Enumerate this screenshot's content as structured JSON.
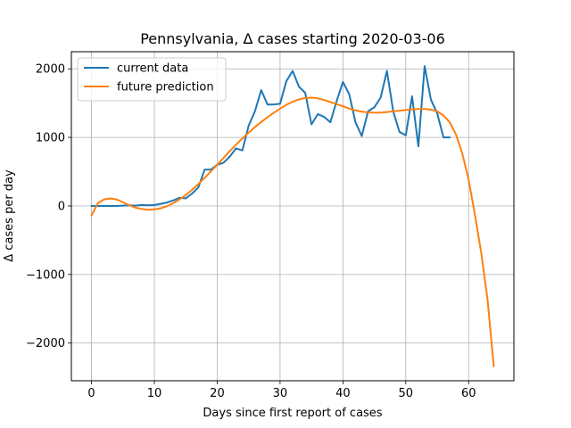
{
  "chart_data": {
    "type": "line",
    "title": "Pennsylvania, Δ cases starting 2020-03-06",
    "xlabel": "Days since first report of cases",
    "ylabel": "Δ cases per day",
    "xlim": [
      -3.2,
      67.2
    ],
    "ylim": [
      -2550,
      2250
    ],
    "x_ticks": [
      0,
      10,
      20,
      30,
      40,
      50,
      60
    ],
    "y_ticks": [
      -2000,
      -1000,
      0,
      1000,
      2000
    ],
    "y_tick_labels": [
      "−2000",
      "−1000",
      "0",
      "1000",
      "2000"
    ],
    "grid": true,
    "legend_position": "top-left",
    "series": [
      {
        "name": "current data",
        "color": "#1f77b4",
        "x": [
          0,
          1,
          2,
          3,
          4,
          5,
          6,
          7,
          8,
          9,
          10,
          11,
          12,
          13,
          14,
          15,
          16,
          17,
          18,
          19,
          20,
          21,
          22,
          23,
          24,
          25,
          26,
          27,
          28,
          29,
          30,
          31,
          32,
          33,
          34,
          35,
          36,
          37,
          38,
          39,
          40,
          41,
          42,
          43,
          44,
          45,
          46,
          47,
          48,
          49,
          50,
          51,
          52,
          53,
          54,
          55,
          56,
          57
        ],
        "y": [
          0,
          0,
          0,
          0,
          0,
          5,
          10,
          5,
          15,
          10,
          15,
          30,
          50,
          80,
          120,
          110,
          180,
          270,
          530,
          530,
          600,
          630,
          720,
          840,
          810,
          1170,
          1380,
          1690,
          1480,
          1480,
          1490,
          1820,
          1970,
          1740,
          1650,
          1190,
          1340,
          1300,
          1220,
          1530,
          1810,
          1630,
          1220,
          1020,
          1380,
          1440,
          1580,
          1970,
          1380,
          1080,
          1030,
          1600,
          870,
          2040,
          1550,
          1350,
          1000,
          1000
        ]
      },
      {
        "name": "future prediction",
        "color": "#ff7f0e",
        "x": [
          0,
          1,
          2,
          3,
          4,
          5,
          6,
          7,
          8,
          9,
          10,
          11,
          12,
          13,
          14,
          15,
          16,
          17,
          18,
          19,
          20,
          21,
          22,
          23,
          24,
          25,
          26,
          27,
          28,
          29,
          30,
          31,
          32,
          33,
          34,
          35,
          36,
          37,
          38,
          39,
          40,
          41,
          42,
          43,
          44,
          45,
          46,
          47,
          48,
          49,
          50,
          51,
          52,
          53,
          54,
          55,
          56,
          57,
          58,
          59,
          60,
          61,
          62,
          63,
          64
        ],
        "y": [
          -140,
          40,
          95,
          110,
          95,
          55,
          10,
          -25,
          -45,
          -55,
          -50,
          -35,
          -5,
          40,
          95,
          160,
          235,
          320,
          410,
          505,
          600,
          700,
          800,
          895,
          985,
          1070,
          1150,
          1225,
          1295,
          1360,
          1420,
          1475,
          1520,
          1555,
          1575,
          1580,
          1570,
          1545,
          1515,
          1485,
          1455,
          1420,
          1395,
          1375,
          1365,
          1360,
          1360,
          1370,
          1380,
          1390,
          1400,
          1410,
          1415,
          1415,
          1405,
          1380,
          1320,
          1220,
          1040,
          760,
          380,
          -130,
          -680,
          -1360,
          -2340
        ]
      }
    ]
  }
}
